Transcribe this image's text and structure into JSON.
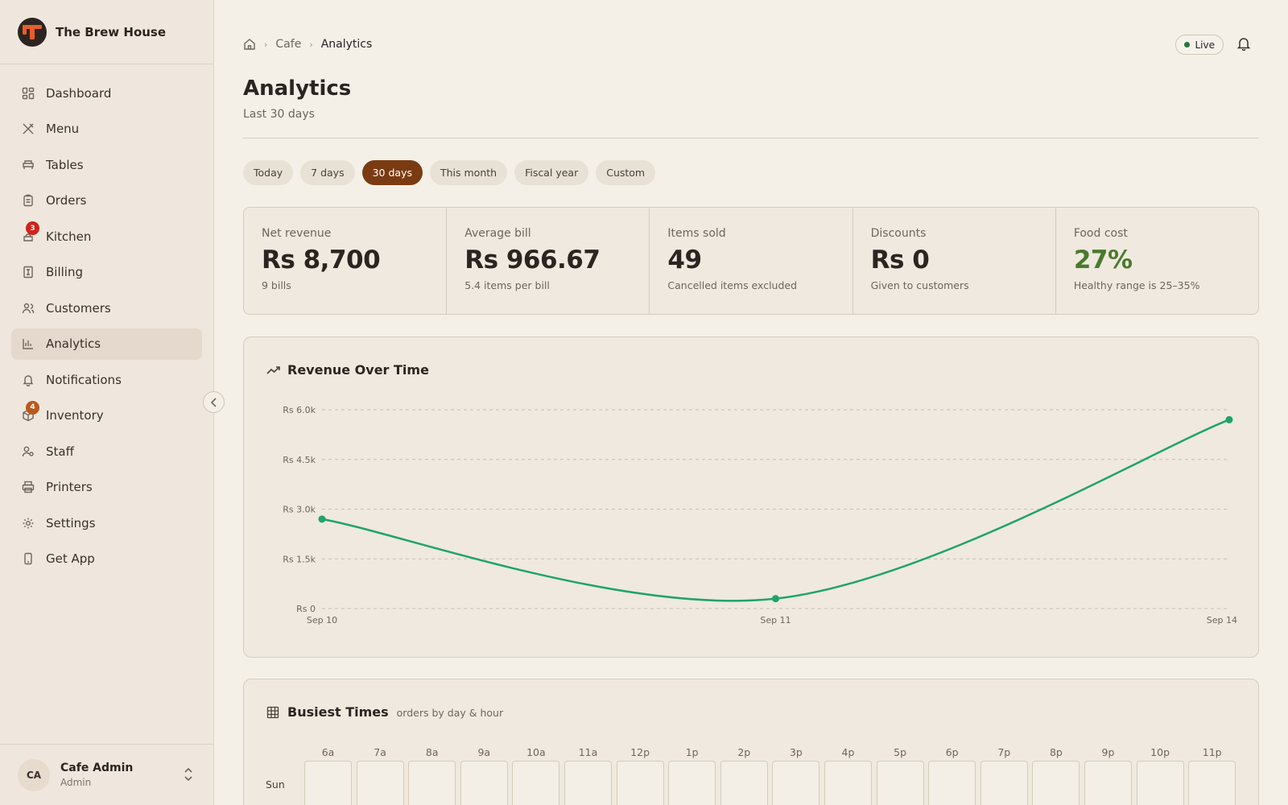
{
  "brand": {
    "name": "The Brew House"
  },
  "sidebar": {
    "items": [
      {
        "label": "Dashboard",
        "icon": "dashboard-icon"
      },
      {
        "label": "Menu",
        "icon": "utensils-icon"
      },
      {
        "label": "Tables",
        "icon": "table-icon"
      },
      {
        "label": "Orders",
        "icon": "clipboard-icon"
      },
      {
        "label": "Kitchen",
        "icon": "kitchen-icon",
        "badge": "3",
        "badge_color": "#d0231c"
      },
      {
        "label": "Billing",
        "icon": "receipt-icon"
      },
      {
        "label": "Customers",
        "icon": "users-icon"
      },
      {
        "label": "Analytics",
        "icon": "bar-chart-icon",
        "active": true
      },
      {
        "label": "Notifications",
        "icon": "bell-icon"
      },
      {
        "label": "Inventory",
        "icon": "box-icon",
        "badge": "4",
        "badge_color": "#b85a1c"
      },
      {
        "label": "Staff",
        "icon": "user-key-icon"
      },
      {
        "label": "Printers",
        "icon": "printer-icon"
      },
      {
        "label": "Settings",
        "icon": "gear-icon"
      },
      {
        "label": "Get App",
        "icon": "phone-icon"
      }
    ]
  },
  "user": {
    "initials": "CA",
    "name": "Cafe Admin",
    "role": "Admin"
  },
  "breadcrumb": {
    "section": "Cafe",
    "current": "Analytics"
  },
  "status": {
    "live_label": "Live",
    "live_color": "#1f7a3e"
  },
  "page": {
    "title": "Analytics",
    "subtitle": "Last 30 days"
  },
  "filters": [
    {
      "label": "Today"
    },
    {
      "label": "7 days"
    },
    {
      "label": "30 days",
      "active": true
    },
    {
      "label": "This month"
    },
    {
      "label": "Fiscal year"
    },
    {
      "label": "Custom"
    }
  ],
  "kpis": [
    {
      "label": "Net revenue",
      "value": "Rs 8,700",
      "note": "9 bills"
    },
    {
      "label": "Average bill",
      "value": "Rs 966.67",
      "note": "5.4 items per bill"
    },
    {
      "label": "Items sold",
      "value": "49",
      "note": "Cancelled items excluded"
    },
    {
      "label": "Discounts",
      "value": "Rs 0",
      "note": "Given to customers"
    },
    {
      "label": "Food cost",
      "value": "27%",
      "note": "Healthy range is 25–35%",
      "value_color": "#4a7a2e"
    }
  ],
  "revenue_card": {
    "title": "Revenue Over Time"
  },
  "chart_data": {
    "type": "line",
    "title": "Revenue Over Time",
    "x": [
      "Sep 10",
      "Sep 11",
      "Sep 14"
    ],
    "series": [
      {
        "values": [
          2700,
          300,
          5700
        ],
        "color": "#1fa36a"
      }
    ],
    "ylim": [
      0,
      6000
    ],
    "yticks": [
      0,
      1500,
      3000,
      4500,
      6000
    ],
    "ytick_labels": [
      "Rs 0",
      "Rs 1.5k",
      "Rs 3.0k",
      "Rs 4.5k",
      "Rs 6.0k"
    ],
    "grid": true
  },
  "busiest": {
    "title": "Busiest Times",
    "subtitle": "orders by day & hour",
    "hours": [
      "6a",
      "7a",
      "8a",
      "9a",
      "10a",
      "11a",
      "12p",
      "1p",
      "2p",
      "3p",
      "4p",
      "5p",
      "6p",
      "7p",
      "8p",
      "9p",
      "10p",
      "11p"
    ],
    "days": [
      "Sun"
    ]
  }
}
